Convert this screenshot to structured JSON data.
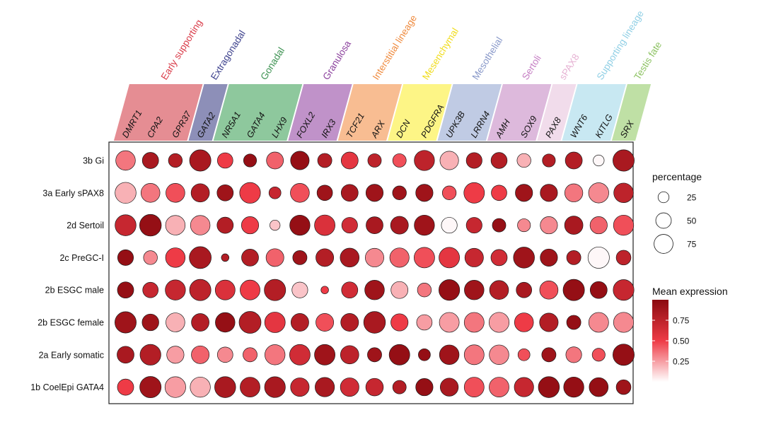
{
  "chart_data": {
    "type": "dotplot",
    "title": "",
    "xlabel": "",
    "ylabel": "",
    "rows": [
      "3b Gi",
      "3a Early sPAX8",
      "2d Sertoil",
      "2c PreGC-I",
      "2b ESGC male",
      "2b ESGC female",
      "2a Early somatic",
      "1b CoelEpi GATA4"
    ],
    "genes": [
      "DMRT1",
      "CPA2",
      "GPR37",
      "GATA2",
      "NR5A1",
      "GATA4",
      "LHX9",
      "FOXL2",
      "IRX3",
      "TCF21",
      "ARX",
      "DCN",
      "PDGFRA",
      "UPK3B",
      "LRRN4",
      "AMH",
      "SOX9",
      "PAX8",
      "WNT6",
      "KITLG",
      "SRX"
    ],
    "groups": [
      {
        "name": "Early supporting",
        "genes": [
          "DMRT1",
          "CPA2",
          "GPR37"
        ],
        "color": "#e58d93",
        "label_color": "#d93b48"
      },
      {
        "name": "Extragonadal",
        "genes": [
          "GATA2"
        ],
        "color": "#8d8fb8",
        "label_color": "#3b3f8c"
      },
      {
        "name": "Gonadal",
        "genes": [
          "NR5A1",
          "GATA4",
          "LHX9"
        ],
        "color": "#8ec89d",
        "label_color": "#3b9150"
      },
      {
        "name": "Granulosa",
        "genes": [
          "FOXL2",
          "IRX3"
        ],
        "color": "#c092c9",
        "label_color": "#8a3f9c"
      },
      {
        "name": "Interstitial lineage",
        "genes": [
          "TCF21",
          "ARX"
        ],
        "color": "#f8bd92",
        "label_color": "#ef8a3d"
      },
      {
        "name": "Mesenchymal",
        "genes": [
          "DCN",
          "PDGFRA"
        ],
        "color": "#fdf586",
        "label_color": "#f0dc1a"
      },
      {
        "name": "Mesothelial",
        "genes": [
          "UPK3B",
          "LRRN4"
        ],
        "color": "#c0cbe4",
        "label_color": "#8898c9"
      },
      {
        "name": "Sertoli",
        "genes": [
          "AMH",
          "SOX9"
        ],
        "color": "#ddb9dc",
        "label_color": "#c57dc3"
      },
      {
        "name": "sPAX8",
        "genes": [
          "PAX8"
        ],
        "color": "#f1dceb",
        "label_color": "#e6b2d3"
      },
      {
        "name": "Supporting lineage",
        "genes": [
          "WNT6",
          "KITLG"
        ],
        "color": "#c8e8f2",
        "label_color": "#8fcfe5"
      },
      {
        "name": "Testis fate",
        "genes": [
          "SRX"
        ],
        "color": "#bfe0a5",
        "label_color": "#8cc261"
      }
    ],
    "percentage": [
      [
        80,
        55,
        40,
        95,
        50,
        35,
        60,
        72,
        42,
        60,
        38,
        38,
        85,
        72,
        52,
        54,
        40,
        35,
        60,
        25,
        95
      ],
      [
        92,
        75,
        75,
        70,
        55,
        90,
        30,
        75,
        50,
        60,
        62,
        40,
        62,
        40,
        88,
        50,
        62,
        62,
        68,
        85,
        80
      ],
      [
        92,
        98,
        80,
        80,
        55,
        62,
        22,
        85,
        88,
        52,
        60,
        66,
        85,
        52,
        52,
        38,
        35,
        62,
        70,
        62,
        85
      ],
      [
        52,
        40,
        80,
        100,
        12,
        60,
        66,
        42,
        66,
        75,
        72,
        78,
        88,
        88,
        72,
        55,
        92,
        62,
        42,
        95,
        45
      ],
      [
        55,
        50,
        85,
        95,
        82,
        82,
        95,
        52,
        12,
        55,
        80,
        60,
        40,
        90,
        80,
        75,
        50,
        70,
        95,
        60,
        90
      ],
      [
        95,
        58,
        75,
        65,
        80,
        100,
        88,
        66,
        66,
        66,
        98,
        62,
        50,
        82,
        82,
        84,
        75,
        72,
        42,
        82,
        84
      ],
      [
        60,
        90,
        62,
        66,
        50,
        42,
        85,
        88,
        88,
        70,
        42,
        88,
        30,
        80,
        82,
        80,
        30,
        42,
        52,
        35,
        95
      ],
      [
        55,
        95,
        90,
        85,
        92,
        82,
        90,
        72,
        78,
        72,
        64,
        38,
        62,
        68,
        82,
        82,
        78,
        92,
        85,
        75,
        45
      ]
    ],
    "mean_expression": [
      [
        0.35,
        0.85,
        0.8,
        0.85,
        0.5,
        0.95,
        0.4,
        0.95,
        0.8,
        0.55,
        0.75,
        0.45,
        0.75,
        0.2,
        0.8,
        0.8,
        0.2,
        0.8,
        0.8,
        0.02,
        0.85
      ],
      [
        0.2,
        0.35,
        0.45,
        0.8,
        0.9,
        0.5,
        0.7,
        0.45,
        0.9,
        0.85,
        0.9,
        0.9,
        0.9,
        0.45,
        0.5,
        0.5,
        0.9,
        0.85,
        0.35,
        0.3,
        0.75
      ],
      [
        0.7,
        0.95,
        0.2,
        0.3,
        0.8,
        0.5,
        0.15,
        0.95,
        0.6,
        0.65,
        0.85,
        0.85,
        0.9,
        0.02,
        0.7,
        0.95,
        0.3,
        0.3,
        0.85,
        0.4,
        0.45
      ],
      [
        0.95,
        0.3,
        0.5,
        0.85,
        0.8,
        0.8,
        0.4,
        0.9,
        0.8,
        0.85,
        0.3,
        0.4,
        0.45,
        0.55,
        0.7,
        0.65,
        0.9,
        0.9,
        0.8,
        0.02,
        0.75
      ],
      [
        0.95,
        0.7,
        0.7,
        0.75,
        0.6,
        0.5,
        0.8,
        0.15,
        0.5,
        0.65,
        0.9,
        0.2,
        0.35,
        0.95,
        0.9,
        0.8,
        0.85,
        0.45,
        0.95,
        0.95,
        0.7
      ],
      [
        0.9,
        0.9,
        0.2,
        0.8,
        0.95,
        0.8,
        0.55,
        0.8,
        0.45,
        0.8,
        0.85,
        0.5,
        0.25,
        0.25,
        0.35,
        0.25,
        0.5,
        0.8,
        0.95,
        0.3,
        0.3
      ],
      [
        0.85,
        0.8,
        0.25,
        0.4,
        0.3,
        0.4,
        0.35,
        0.65,
        0.9,
        0.75,
        0.9,
        0.95,
        0.95,
        0.9,
        0.35,
        0.3,
        0.45,
        0.9,
        0.35,
        0.45,
        0.95
      ],
      [
        0.5,
        0.9,
        0.25,
        0.2,
        0.85,
        0.8,
        0.85,
        0.7,
        0.85,
        0.65,
        0.7,
        0.8,
        0.95,
        0.85,
        0.45,
        0.4,
        0.7,
        0.95,
        0.95,
        0.95,
        0.9
      ]
    ],
    "size_legend": {
      "title": "percentage",
      "values": [
        25,
        50,
        75
      ]
    },
    "color_legend": {
      "title": "Mean expression",
      "ticks": [
        0.75,
        0.5,
        0.25
      ],
      "tick_labels": [
        "0.75",
        "0.50",
        "0.25"
      ],
      "range": [
        0,
        1
      ],
      "low_color": "#ffffff",
      "high_color": "#8b0a0f"
    },
    "legend_position": "right"
  }
}
